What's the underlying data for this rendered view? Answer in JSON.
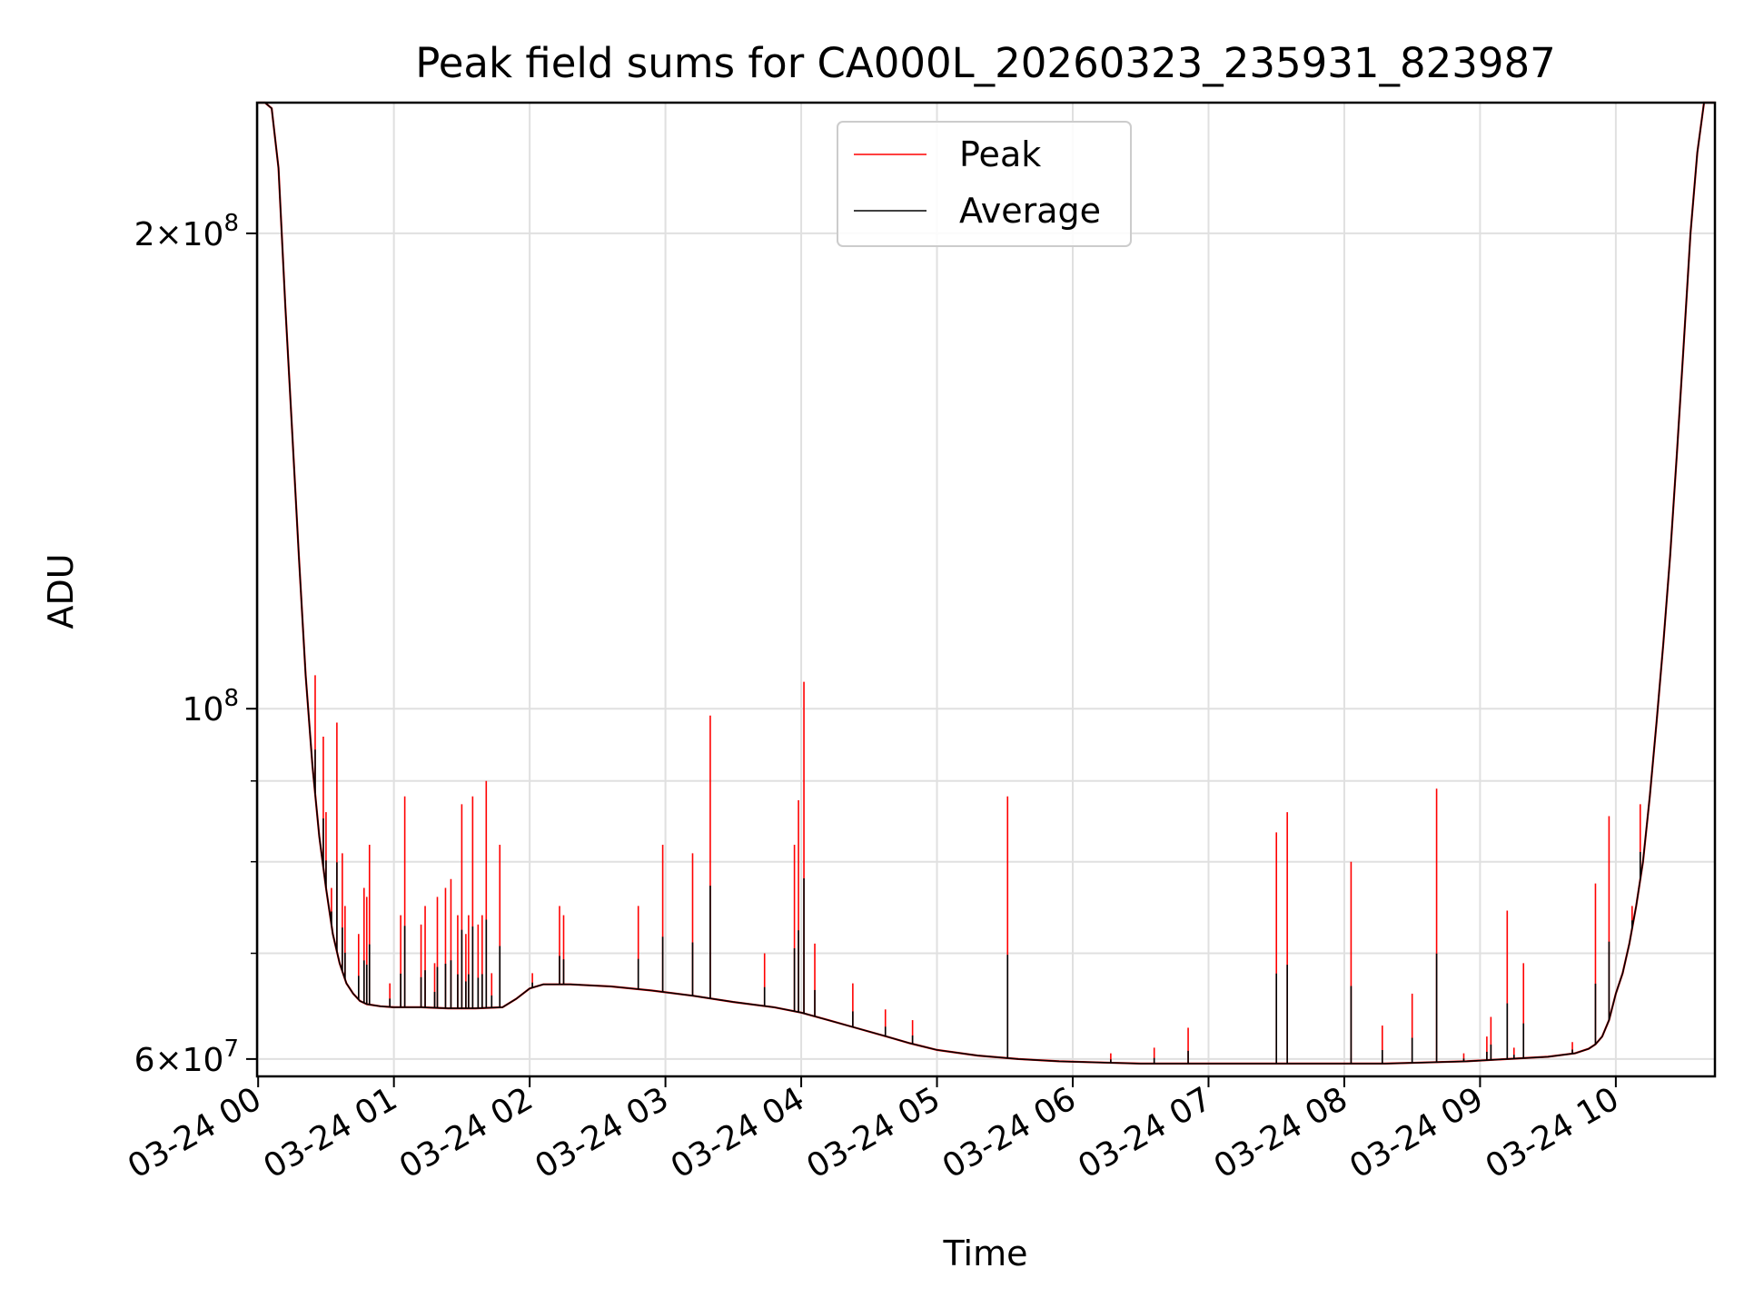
{
  "chart_data": {
    "type": "line",
    "title": "Peak field sums for CA000L_20260323_235931_823987",
    "xlabel": "Time",
    "ylabel": "ADU",
    "yscale": "log",
    "ylim": [
      58500000,
      242000000
    ],
    "xlim_hours": [
      -0.008,
      10.73
    ],
    "grid": true,
    "legend_position": "top-center",
    "colors": {
      "peak": "#ff0000",
      "average": "#000000",
      "grid": "#e0e0e0"
    },
    "x_ticks": [
      {
        "value": 0,
        "label": "03-24 00"
      },
      {
        "value": 1,
        "label": "03-24 01"
      },
      {
        "value": 2,
        "label": "03-24 02"
      },
      {
        "value": 3,
        "label": "03-24 03"
      },
      {
        "value": 4,
        "label": "03-24 04"
      },
      {
        "value": 5,
        "label": "03-24 05"
      },
      {
        "value": 6,
        "label": "03-24 06"
      },
      {
        "value": 7,
        "label": "03-24 07"
      },
      {
        "value": 8,
        "label": "03-24 08"
      },
      {
        "value": 9,
        "label": "03-24 09"
      },
      {
        "value": 10,
        "label": "03-24 10"
      }
    ],
    "y_major_ticks": [
      {
        "value": 60000000,
        "mant": "6",
        "exp": "7"
      },
      {
        "value": 100000000,
        "mant": "",
        "exp": "8"
      },
      {
        "value": 200000000,
        "mant": "2",
        "exp": "8"
      }
    ],
    "y_minor_ticks": [
      70000000,
      80000000,
      90000000
    ],
    "series": [
      {
        "name": "Average",
        "x_hours": [
          0.0,
          0.05,
          0.1,
          0.15,
          0.2,
          0.25,
          0.3,
          0.35,
          0.4,
          0.45,
          0.5,
          0.55,
          0.6,
          0.65,
          0.7,
          0.75,
          0.8,
          0.9,
          1.0,
          1.2,
          1.4,
          1.6,
          1.8,
          1.9,
          2.0,
          2.1,
          2.3,
          2.6,
          2.9,
          3.2,
          3.5,
          3.8,
          4.0,
          4.2,
          4.4,
          4.6,
          4.8,
          5.0,
          5.3,
          5.6,
          5.9,
          6.2,
          6.5,
          6.8,
          7.1,
          7.4,
          7.7,
          8.0,
          8.3,
          8.6,
          8.9,
          9.2,
          9.5,
          9.7,
          9.8,
          9.85,
          9.9,
          9.95,
          10.0,
          10.05,
          10.1,
          10.15,
          10.2,
          10.25,
          10.3,
          10.35,
          10.4,
          10.45,
          10.5,
          10.55,
          10.6,
          10.65,
          10.7,
          10.73
        ],
        "values_mADU": [
          242,
          242,
          240,
          220,
          180,
          150,
          125,
          105,
          92,
          83,
          77,
          72,
          69,
          67,
          66,
          65.3,
          65.0,
          64.8,
          64.7,
          64.7,
          64.6,
          64.6,
          64.7,
          65.5,
          66.5,
          66.9,
          66.9,
          66.7,
          66.3,
          65.8,
          65.2,
          64.7,
          64.2,
          63.5,
          62.8,
          62.1,
          61.4,
          60.8,
          60.3,
          60.0,
          59.8,
          59.7,
          59.6,
          59.6,
          59.6,
          59.6,
          59.6,
          59.6,
          59.6,
          59.7,
          59.8,
          60.0,
          60.2,
          60.5,
          60.9,
          61.3,
          62.0,
          63.5,
          66.0,
          68.0,
          71.0,
          75.0,
          80.0,
          88.0,
          98.0,
          110.0,
          125.0,
          145.0,
          170.0,
          200.0,
          225.0,
          242.0,
          242.0,
          242.0
        ]
      },
      {
        "name": "Peak",
        "baseline": "average",
        "spikes": [
          {
            "x": 0.42,
            "y": 105
          },
          {
            "x": 0.48,
            "y": 96
          },
          {
            "x": 0.5,
            "y": 86
          },
          {
            "x": 0.54,
            "y": 77
          },
          {
            "x": 0.58,
            "y": 98
          },
          {
            "x": 0.62,
            "y": 81
          },
          {
            "x": 0.64,
            "y": 75
          },
          {
            "x": 0.74,
            "y": 72
          },
          {
            "x": 0.78,
            "y": 77
          },
          {
            "x": 0.8,
            "y": 76
          },
          {
            "x": 0.82,
            "y": 82
          },
          {
            "x": 0.97,
            "y": 67
          },
          {
            "x": 1.05,
            "y": 74
          },
          {
            "x": 1.08,
            "y": 88
          },
          {
            "x": 1.2,
            "y": 73
          },
          {
            "x": 1.23,
            "y": 75
          },
          {
            "x": 1.3,
            "y": 69
          },
          {
            "x": 1.32,
            "y": 76
          },
          {
            "x": 1.38,
            "y": 77
          },
          {
            "x": 1.42,
            "y": 78
          },
          {
            "x": 1.47,
            "y": 74
          },
          {
            "x": 1.5,
            "y": 87
          },
          {
            "x": 1.53,
            "y": 72
          },
          {
            "x": 1.55,
            "y": 74
          },
          {
            "x": 1.58,
            "y": 88
          },
          {
            "x": 1.62,
            "y": 73
          },
          {
            "x": 1.65,
            "y": 74
          },
          {
            "x": 1.68,
            "y": 90
          },
          {
            "x": 1.72,
            "y": 68
          },
          {
            "x": 1.78,
            "y": 82
          },
          {
            "x": 2.02,
            "y": 68
          },
          {
            "x": 2.22,
            "y": 75
          },
          {
            "x": 2.25,
            "y": 74
          },
          {
            "x": 2.8,
            "y": 75
          },
          {
            "x": 2.98,
            "y": 82
          },
          {
            "x": 3.2,
            "y": 81
          },
          {
            "x": 3.33,
            "y": 99
          },
          {
            "x": 3.73,
            "y": 70
          },
          {
            "x": 3.95,
            "y": 82
          },
          {
            "x": 3.98,
            "y": 87.5
          },
          {
            "x": 4.02,
            "y": 104
          },
          {
            "x": 4.1,
            "y": 71
          },
          {
            "x": 4.38,
            "y": 67
          },
          {
            "x": 4.62,
            "y": 64.5
          },
          {
            "x": 4.82,
            "y": 63.5
          },
          {
            "x": 5.52,
            "y": 88
          },
          {
            "x": 6.28,
            "y": 60.5
          },
          {
            "x": 6.6,
            "y": 61
          },
          {
            "x": 6.85,
            "y": 62.8
          },
          {
            "x": 7.5,
            "y": 83.5
          },
          {
            "x": 7.58,
            "y": 86
          },
          {
            "x": 8.05,
            "y": 80
          },
          {
            "x": 8.28,
            "y": 63
          },
          {
            "x": 8.5,
            "y": 66
          },
          {
            "x": 8.68,
            "y": 89
          },
          {
            "x": 8.88,
            "y": 60.5
          },
          {
            "x": 9.05,
            "y": 62
          },
          {
            "x": 9.08,
            "y": 63.8
          },
          {
            "x": 9.2,
            "y": 74.5
          },
          {
            "x": 9.25,
            "y": 61
          },
          {
            "x": 9.32,
            "y": 69
          },
          {
            "x": 9.68,
            "y": 61.5
          },
          {
            "x": 9.85,
            "y": 77.5
          },
          {
            "x": 9.95,
            "y": 85.5
          },
          {
            "x": 10.12,
            "y": 75
          },
          {
            "x": 10.18,
            "y": 87
          }
        ]
      }
    ]
  }
}
